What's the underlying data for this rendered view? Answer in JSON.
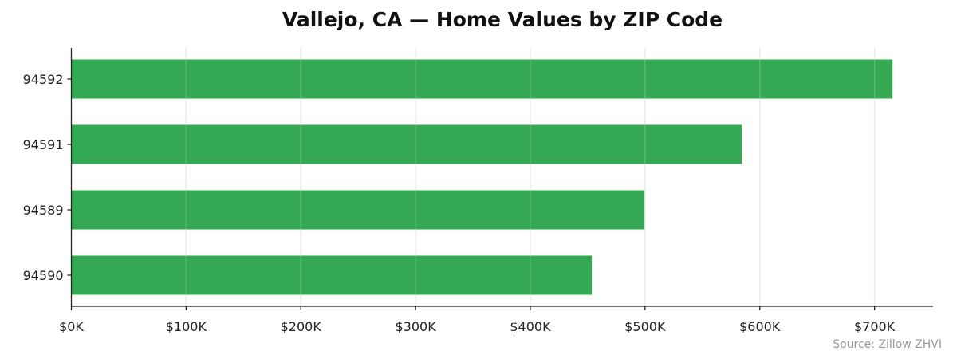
{
  "chart_data": {
    "type": "bar",
    "orientation": "horizontal",
    "title": "Vallejo, CA — Home Values by ZIP Code",
    "xlabel": "",
    "ylabel": "",
    "categories": [
      "94592",
      "94591",
      "94589",
      "94590"
    ],
    "values": [
      715.7,
      584.4,
      499.5,
      453.6
    ],
    "value_units": "thousands USD",
    "xlim": [
      0,
      751
    ],
    "xticks": [
      0,
      100,
      200,
      300,
      400,
      500,
      600,
      700
    ],
    "xtick_labels": [
      "$0K",
      "$100K",
      "$200K",
      "$300K",
      "$400K",
      "$500K",
      "$600K",
      "$700K"
    ],
    "grid": "x-axis vertical lines",
    "bar_color": "#35a853",
    "source": "Source: Zillow ZHVI"
  }
}
